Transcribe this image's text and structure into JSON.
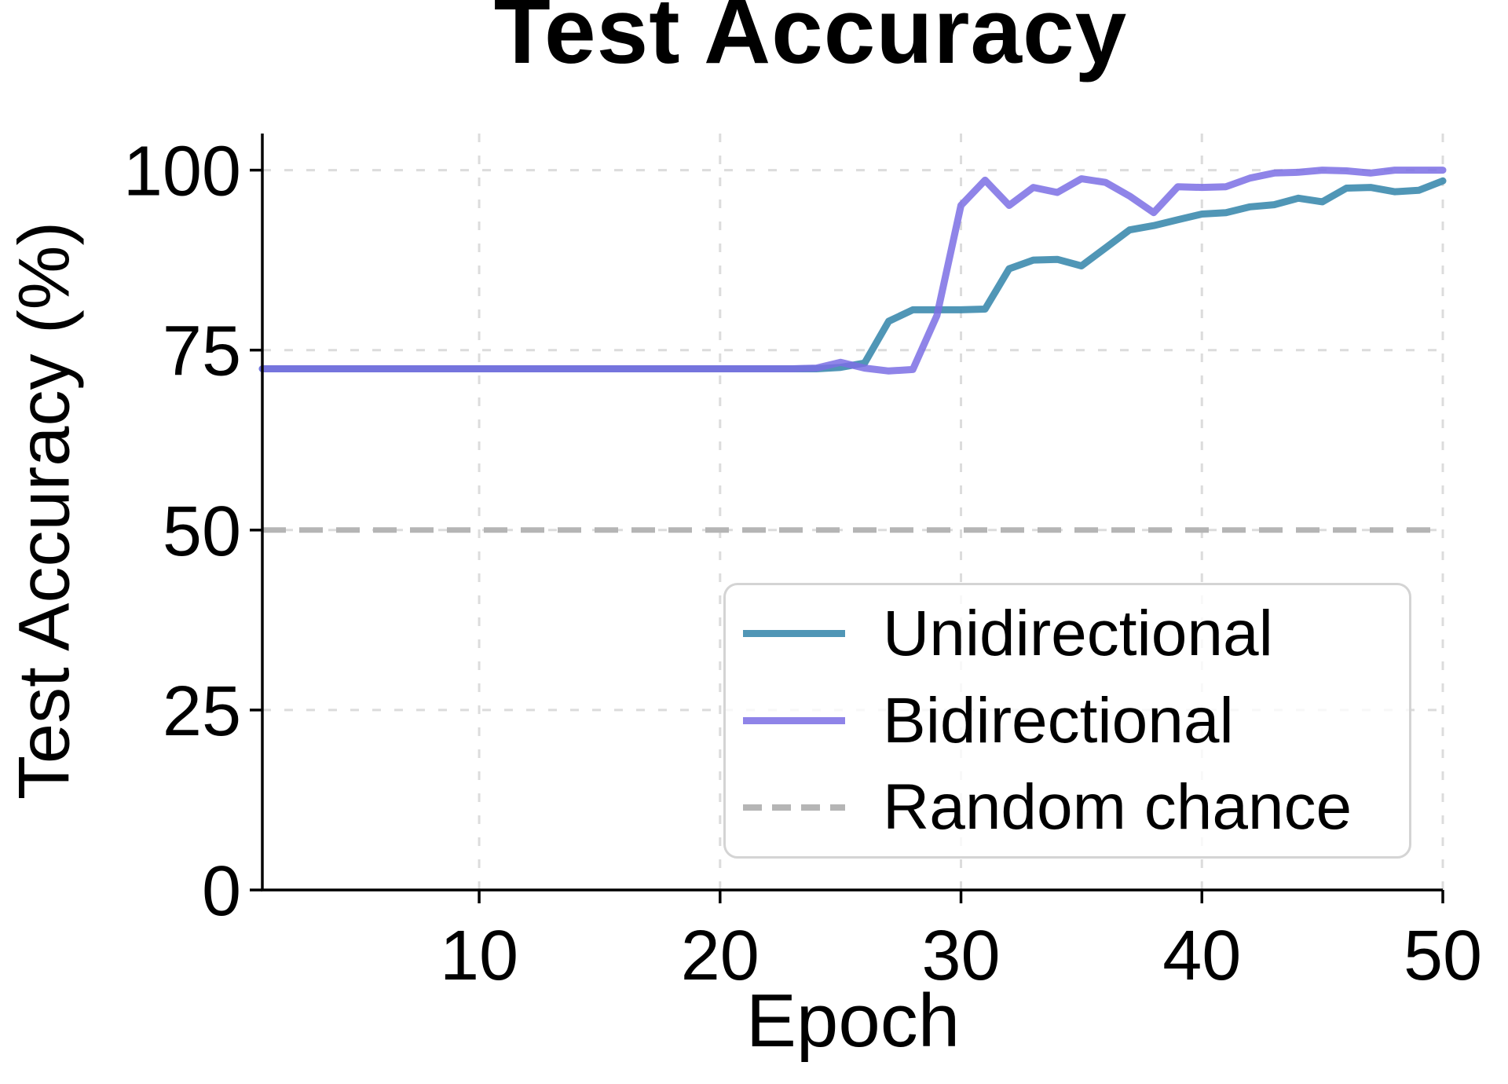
{
  "chart_data": {
    "type": "line",
    "title": "Test Accuracy",
    "xlabel": "Epoch",
    "ylabel": "Test Accuracy (%)",
    "xlim": [
      1,
      50
    ],
    "ylim": [
      0,
      105
    ],
    "xticks": [
      10,
      20,
      30,
      40,
      50
    ],
    "yticks": [
      0,
      25,
      50,
      75,
      100
    ],
    "grid": true,
    "legend_position": "lower right",
    "x": [
      1,
      2,
      3,
      4,
      5,
      6,
      7,
      8,
      9,
      10,
      11,
      12,
      13,
      14,
      15,
      16,
      17,
      18,
      19,
      20,
      21,
      22,
      23,
      24,
      25,
      26,
      27,
      28,
      29,
      30,
      31,
      32,
      33,
      34,
      35,
      36,
      37,
      38,
      39,
      40,
      41,
      42,
      43,
      44,
      45,
      46,
      47,
      48,
      49,
      50
    ],
    "series": [
      {
        "name": "Unidirectional",
        "color": "#3d8bae",
        "opacity": 0.9,
        "values": [
          72.4,
          72.4,
          72.4,
          72.4,
          72.4,
          72.4,
          72.4,
          72.4,
          72.4,
          72.4,
          72.4,
          72.4,
          72.4,
          72.4,
          72.4,
          72.4,
          72.4,
          72.4,
          72.4,
          72.4,
          72.4,
          72.4,
          72.4,
          72.4,
          72.6,
          73.2,
          79.0,
          80.6,
          80.6,
          80.6,
          80.7,
          86.3,
          87.5,
          87.6,
          86.7,
          89.2,
          91.7,
          92.3,
          93.1,
          93.9,
          94.1,
          94.9,
          95.2,
          96.1,
          95.6,
          97.5,
          97.6,
          97.0,
          97.2,
          98.5
        ]
      },
      {
        "name": "Bidirectional",
        "color": "#7b6fe4",
        "opacity": 0.85,
        "values": [
          72.4,
          72.4,
          72.4,
          72.4,
          72.4,
          72.4,
          72.4,
          72.4,
          72.4,
          72.4,
          72.4,
          72.4,
          72.4,
          72.4,
          72.4,
          72.4,
          72.4,
          72.4,
          72.4,
          72.4,
          72.4,
          72.4,
          72.4,
          72.5,
          73.3,
          72.5,
          72.1,
          72.3,
          79.8,
          95.1,
          98.6,
          95.1,
          97.6,
          96.9,
          98.8,
          98.3,
          96.4,
          94.1,
          97.7,
          97.6,
          97.7,
          98.9,
          99.6,
          99.7,
          100,
          99.9,
          99.6,
          100,
          100,
          100
        ]
      }
    ],
    "reference_line": {
      "name": "Random chance",
      "value": 50,
      "color": "#b5b5b5",
      "style": "dashed"
    }
  },
  "legend": {
    "items": [
      {
        "label": "Unidirectional"
      },
      {
        "label": "Bidirectional"
      },
      {
        "label": "Random chance"
      }
    ]
  },
  "colors": {
    "unidirectional": "#3d8bae",
    "bidirectional": "#7b6fe4",
    "random_chance": "#b5b5b5",
    "gridline": "#dcdcdc",
    "axis": "#000000"
  }
}
